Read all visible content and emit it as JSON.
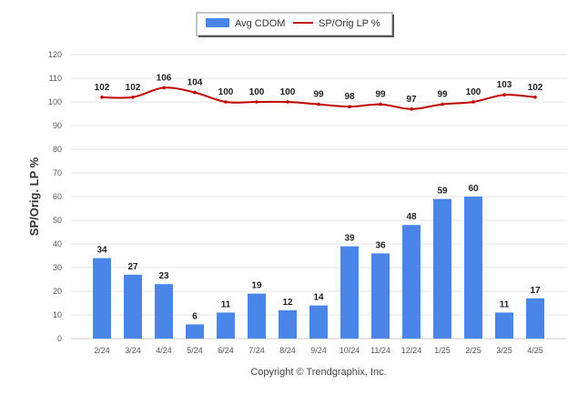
{
  "footer": "Copyright © Trendgraphix, Inc.",
  "colors": {
    "bar": "#4a86e8",
    "line": "#c00000",
    "grid": "#e6e6e6"
  },
  "chart_data": {
    "type": "bar",
    "title": "",
    "xlabel": "",
    "ylabel": "SP/Orig. LP %",
    "ylim": [
      0,
      120
    ],
    "yticks": [
      0,
      10,
      20,
      30,
      40,
      50,
      60,
      70,
      80,
      90,
      100,
      110,
      120
    ],
    "grid": true,
    "legend_position": "top-center",
    "categories": [
      "2/24",
      "3/24",
      "4/24",
      "5/24",
      "6/24",
      "7/24",
      "8/24",
      "9/24",
      "10/24",
      "11/24",
      "12/24",
      "1/25",
      "2/25",
      "3/25",
      "4/25"
    ],
    "series": [
      {
        "name": "Avg CDOM",
        "type": "bar",
        "values": [
          34,
          27,
          23,
          6,
          11,
          19,
          12,
          14,
          39,
          36,
          48,
          59,
          60,
          11,
          17
        ]
      },
      {
        "name": "SP/Orig LP %",
        "type": "line",
        "values": [
          102,
          102,
          106,
          104,
          100,
          100,
          100,
          99,
          98,
          99,
          97,
          99,
          100,
          103,
          102
        ]
      }
    ]
  }
}
